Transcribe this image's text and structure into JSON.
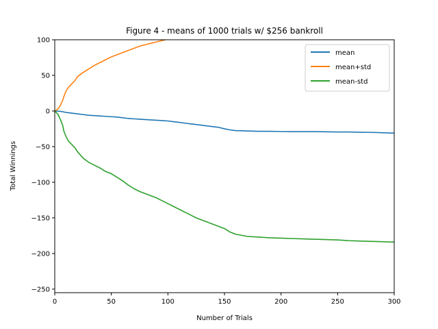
{
  "chart_data": {
    "type": "line",
    "title": "Figure 4 - means of 1000 trials w/ $256 bankroll",
    "xlabel": "Number of Trials",
    "ylabel": "Total Winnings",
    "xlim": [
      0,
      300
    ],
    "ylim": [
      -255,
      100
    ],
    "x_ticks": [
      0,
      50,
      100,
      150,
      200,
      250,
      300
    ],
    "y_ticks": [
      -250,
      -200,
      -150,
      -100,
      -50,
      0,
      50,
      100
    ],
    "x_tick_labels": [
      "0",
      "50",
      "100",
      "150",
      "200",
      "250",
      "300"
    ],
    "y_tick_labels": [
      "−250",
      "−200",
      "−150",
      "−100",
      "−50",
      "0",
      "50",
      "100"
    ],
    "grid": false,
    "legend_position": "top-right",
    "series": [
      {
        "name": "mean",
        "color": "#1f77b4",
        "x": [
          0,
          5,
          10,
          15,
          20,
          25,
          30,
          35,
          40,
          45,
          50,
          55,
          60,
          65,
          70,
          75,
          80,
          85,
          90,
          95,
          100,
          105,
          110,
          115,
          120,
          125,
          130,
          135,
          140,
          145,
          150,
          155,
          160,
          170,
          180,
          190,
          200,
          210,
          220,
          230,
          240,
          250,
          260,
          270,
          280,
          290,
          300
        ],
        "y": [
          0,
          -0.5,
          -2,
          -3,
          -4,
          -5,
          -6,
          -6.5,
          -7,
          -7.5,
          -8,
          -8.5,
          -9.5,
          -10.5,
          -11,
          -11.5,
          -12,
          -12.5,
          -13,
          -13.5,
          -14,
          -15,
          -16,
          -17,
          -18,
          -19,
          -20,
          -21,
          -22,
          -23,
          -25,
          -26.5,
          -27.5,
          -28,
          -28.5,
          -28.5,
          -28.8,
          -29,
          -29,
          -29,
          -29.2,
          -29.5,
          -29.5,
          -29.8,
          -30,
          -30.5,
          -31
        ]
      },
      {
        "name": "mean+std",
        "color": "#ff7f0e",
        "x": [
          0,
          3,
          5,
          7,
          8,
          10,
          12,
          15,
          18,
          20,
          25,
          30,
          35,
          40,
          45,
          50,
          55,
          60,
          65,
          70,
          75,
          80,
          85,
          90,
          95,
          100
        ],
        "y": [
          0,
          3,
          8,
          15,
          20,
          28,
          33,
          38,
          43,
          48,
          54,
          59,
          64,
          68,
          72,
          76,
          79,
          82,
          85,
          88,
          91,
          93,
          95,
          97,
          99,
          101
        ]
      },
      {
        "name": "mean-std",
        "color": "#2ca02c",
        "x": [
          0,
          3,
          5,
          7,
          8,
          10,
          12,
          15,
          18,
          20,
          25,
          30,
          35,
          40,
          45,
          50,
          55,
          60,
          65,
          70,
          75,
          80,
          85,
          90,
          95,
          100,
          105,
          110,
          115,
          120,
          125,
          130,
          135,
          140,
          145,
          150,
          155,
          160,
          170,
          180,
          190,
          200,
          210,
          220,
          230,
          240,
          250,
          260,
          270,
          280,
          290,
          300
        ],
        "y": [
          0,
          -5,
          -12,
          -20,
          -28,
          -36,
          -42,
          -47,
          -52,
          -57,
          -66,
          -72,
          -76,
          -80,
          -85,
          -88,
          -93,
          -98,
          -104,
          -109,
          -113,
          -116,
          -119,
          -122,
          -126,
          -130,
          -134,
          -138,
          -142,
          -146,
          -150,
          -153,
          -156,
          -159,
          -162,
          -165,
          -170,
          -173,
          -176,
          -177,
          -178,
          -178.5,
          -179,
          -179.5,
          -180,
          -180.5,
          -181,
          -182,
          -182.5,
          -183,
          -183.5,
          -184
        ]
      }
    ]
  }
}
